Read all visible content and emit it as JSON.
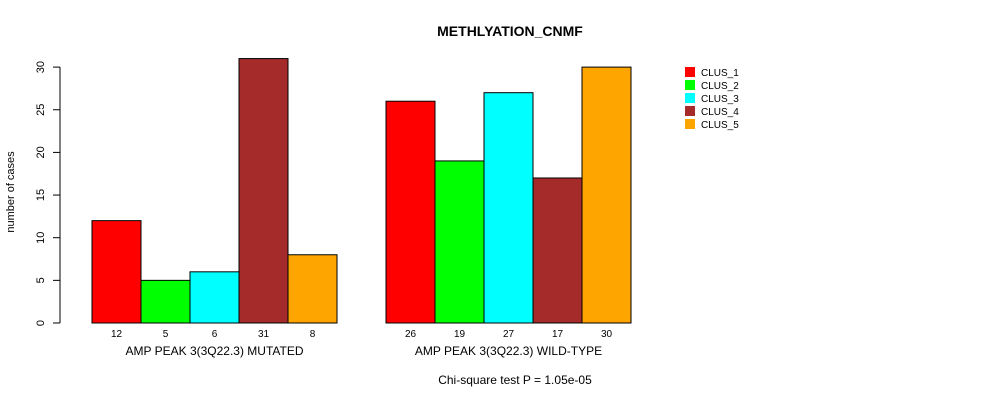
{
  "chart_data": {
    "type": "bar",
    "title": "METHLYATION_CNMF",
    "ylabel": "number of cases",
    "xlabel": "",
    "ylim": [
      0,
      31
    ],
    "yticks": [
      0,
      5,
      10,
      15,
      20,
      25,
      30
    ],
    "groups": [
      "AMP PEAK 3(3Q22.3) MUTATED",
      "AMP PEAK 3(3Q22.3) WILD-TYPE"
    ],
    "series": [
      {
        "name": "CLUS_1",
        "color": "#ff0000",
        "values": [
          12,
          26
        ]
      },
      {
        "name": "CLUS_2",
        "color": "#00ff00",
        "values": [
          5,
          19
        ]
      },
      {
        "name": "CLUS_3",
        "color": "#00ffff",
        "values": [
          6,
          27
        ]
      },
      {
        "name": "CLUS_4",
        "color": "#a52a2a",
        "values": [
          31,
          17
        ]
      },
      {
        "name": "CLUS_5",
        "color": "#ffa500",
        "values": [
          8,
          30
        ]
      }
    ],
    "legend_position": "top-right",
    "annotation": "Chi-square test P = 1.05e-05"
  }
}
